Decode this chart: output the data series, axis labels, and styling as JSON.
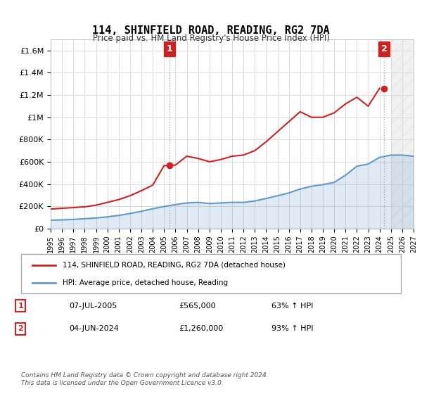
{
  "title": "114, SHINFIELD ROAD, READING, RG2 7DA",
  "subtitle": "Price paid vs. HM Land Registry's House Price Index (HPI)",
  "legend_line1": "114, SHINFIELD ROAD, READING, RG2 7DA (detached house)",
  "legend_line2": "HPI: Average price, detached house, Reading",
  "annotation1_label": "1",
  "annotation1_date": "07-JUL-2005",
  "annotation1_price": "£565,000",
  "annotation1_pct": "63% ↑ HPI",
  "annotation2_label": "2",
  "annotation2_date": "04-JUN-2024",
  "annotation2_price": "£1,260,000",
  "annotation2_pct": "93% ↑ HPI",
  "footer": "Contains HM Land Registry data © Crown copyright and database right 2024.\nThis data is licensed under the Open Government Licence v3.0.",
  "hpi_color": "#6699cc",
  "price_color": "#cc2222",
  "marker_color": "#cc2222",
  "annotation_box_color": "#cc2222",
  "ylim": [
    0,
    1700000
  ],
  "yticks": [
    0,
    200000,
    400000,
    600000,
    800000,
    1000000,
    1200000,
    1400000,
    1600000
  ],
  "ytick_labels": [
    "£0",
    "£200K",
    "£400K",
    "£600K",
    "£800K",
    "£1M",
    "£1.2M",
    "£1.4M",
    "£1.6M"
  ],
  "hpi_years": [
    1995,
    1996,
    1997,
    1998,
    1999,
    2000,
    2001,
    2002,
    2003,
    2004,
    2005,
    2006,
    2007,
    2008,
    2009,
    2010,
    2011,
    2012,
    2013,
    2014,
    2015,
    2016,
    2017,
    2018,
    2019,
    2020,
    2021,
    2022,
    2023,
    2024,
    2025,
    2026,
    2027
  ],
  "hpi_values": [
    75000,
    78000,
    82000,
    88000,
    95000,
    105000,
    118000,
    135000,
    155000,
    178000,
    198000,
    215000,
    230000,
    235000,
    225000,
    230000,
    235000,
    235000,
    248000,
    270000,
    295000,
    320000,
    355000,
    380000,
    395000,
    415000,
    480000,
    560000,
    580000,
    640000,
    660000,
    660000,
    650000
  ],
  "price_years": [
    1995,
    1996,
    1997,
    1998,
    1999,
    2000,
    2001,
    2002,
    2003,
    2004,
    2005,
    2006,
    2007,
    2008,
    2009,
    2010,
    2011,
    2012,
    2013,
    2014,
    2015,
    2016,
    2017,
    2018,
    2019,
    2020,
    2021,
    2022,
    2023,
    2024
  ],
  "price_values": [
    175000,
    182000,
    188000,
    195000,
    210000,
    235000,
    260000,
    295000,
    340000,
    390000,
    565000,
    570000,
    650000,
    630000,
    600000,
    620000,
    650000,
    660000,
    700000,
    780000,
    870000,
    960000,
    1050000,
    1000000,
    1000000,
    1040000,
    1120000,
    1180000,
    1100000,
    1260000
  ],
  "sale1_x": 2005.5,
  "sale1_y": 565000,
  "sale2_x": 2024.4,
  "sale2_y": 1260000,
  "xmin": 1995,
  "xmax": 2027,
  "xticks": [
    1995,
    1996,
    1997,
    1998,
    1999,
    2000,
    2001,
    2002,
    2003,
    2004,
    2005,
    2006,
    2007,
    2008,
    2009,
    2010,
    2011,
    2012,
    2013,
    2014,
    2015,
    2016,
    2017,
    2018,
    2019,
    2020,
    2021,
    2022,
    2023,
    2024,
    2025,
    2026,
    2027
  ]
}
